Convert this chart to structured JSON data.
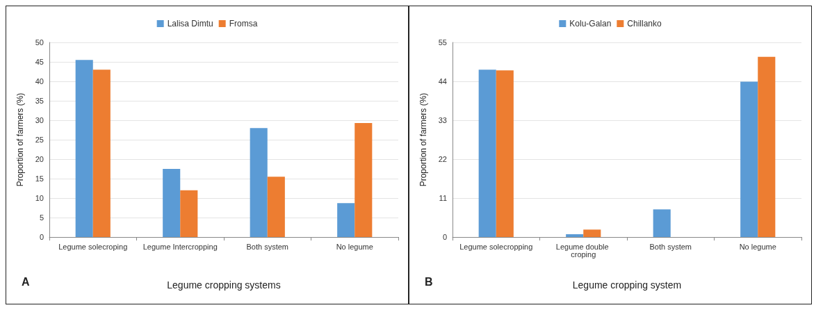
{
  "chart_data": [
    {
      "type": "bar",
      "ylabel": "Proportion of farmers (%)",
      "xlabel": "Legume cropping systems",
      "categories": [
        "Legume solecroping",
        "Legume Intercropping",
        "Both system",
        "No legume"
      ],
      "series": [
        {
          "name": "Lalisa Dimtu",
          "color": "#5b9bd5",
          "values": [
            45.5,
            17.5,
            28,
            8.7
          ]
        },
        {
          "name": "Fromsa",
          "color": "#ed7d31",
          "values": [
            43,
            12,
            15.5,
            29.3
          ]
        }
      ],
      "ylim": [
        0,
        50
      ],
      "yticks": [
        0,
        5,
        10,
        15,
        20,
        25,
        30,
        35,
        40,
        45,
        50
      ],
      "grid": "y",
      "legend": "top",
      "annotations": [
        "A"
      ]
    },
    {
      "type": "bar",
      "ylabel": "Proportion of farmers (%)",
      "xlabel": "Legume cropping system",
      "categories": [
        "Legume solecropping",
        "Legume double croping",
        "Both system",
        "No legume"
      ],
      "series": [
        {
          "name": "Kolu-Galan",
          "color": "#5b9bd5",
          "values": [
            47.3,
            0.8,
            7.8,
            43.9
          ]
        },
        {
          "name": "Chillanko",
          "color": "#ed7d31",
          "values": [
            47.1,
            2.1,
            0,
            50.9
          ]
        }
      ],
      "ylim": [
        0,
        55
      ],
      "yticks": [
        0,
        11,
        22,
        33,
        44,
        55
      ],
      "grid": "y",
      "legend": "top",
      "annotations": [
        "B"
      ]
    }
  ]
}
